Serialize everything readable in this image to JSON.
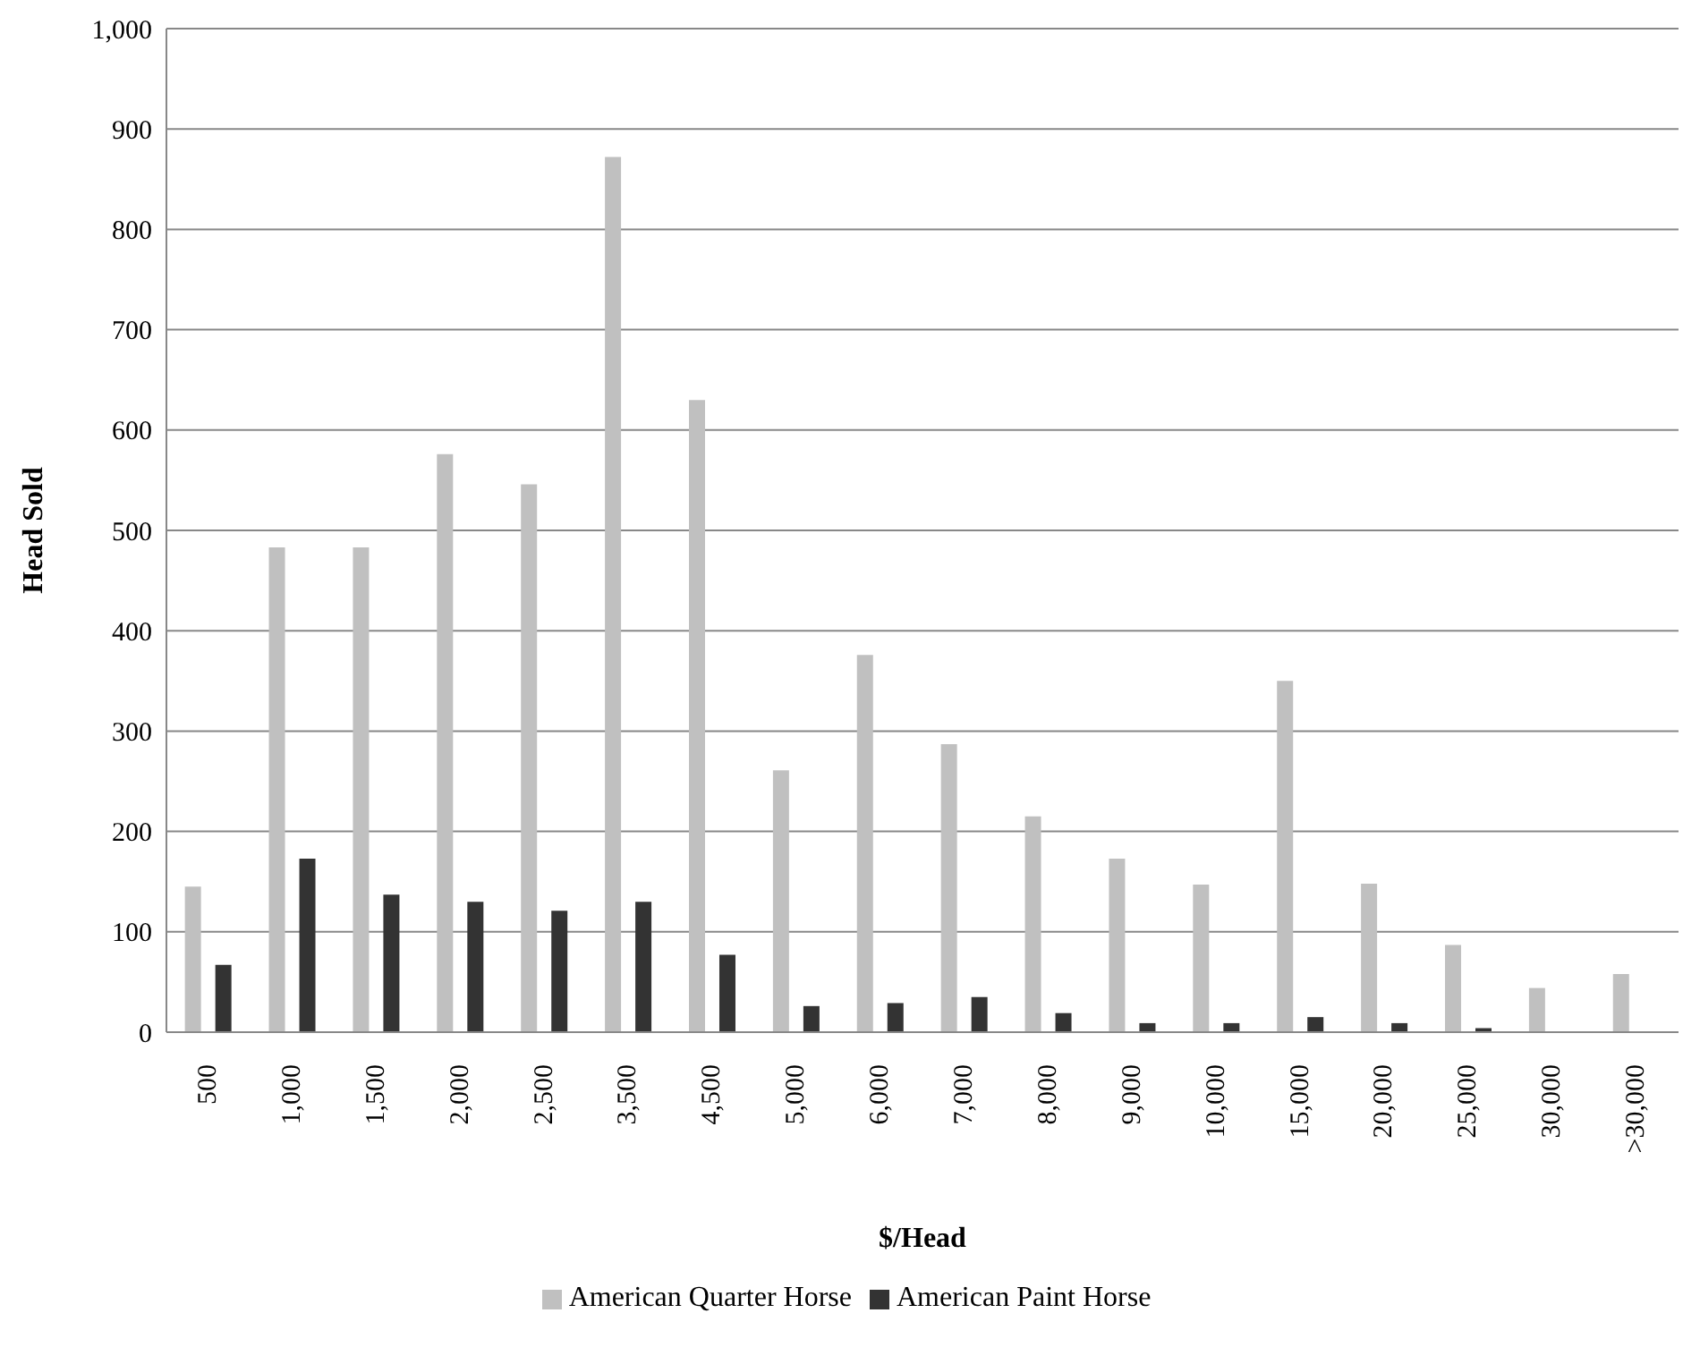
{
  "chart_data": {
    "type": "bar",
    "xlabel": "$/Head",
    "ylabel": "Head Sold",
    "categories": [
      "500",
      "1,000",
      "1,500",
      "2,000",
      "2,500",
      "3,500",
      "4,500",
      "5,000",
      "6,000",
      "7,000",
      "8,000",
      "9,000",
      "10,000",
      "15,000",
      "20,000",
      "25,000",
      "30,000",
      ">30,000"
    ],
    "series": [
      {
        "name": "American Quarter Horse",
        "color": "#c0c0c0",
        "values": [
          145,
          483,
          483,
          576,
          546,
          872,
          630,
          261,
          376,
          287,
          215,
          173,
          147,
          350,
          148,
          87,
          44,
          58
        ]
      },
      {
        "name": "American Paint Horse",
        "color": "#333333",
        "values": [
          67,
          173,
          137,
          130,
          121,
          130,
          77,
          26,
          29,
          35,
          19,
          9,
          9,
          15,
          9,
          4,
          0,
          0
        ]
      }
    ],
    "ylim": [
      0,
      1000
    ],
    "yticks": [
      0,
      100,
      200,
      300,
      400,
      500,
      600,
      700,
      800,
      900,
      {
        "value": 1000,
        "label": "1,000"
      }
    ],
    "grid": "y",
    "legend": "bottom"
  }
}
